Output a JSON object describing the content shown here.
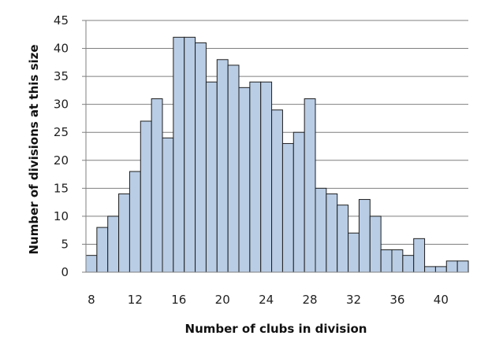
{
  "chart_data": {
    "type": "bar",
    "title": "",
    "xlabel": "Number of clubs in division",
    "ylabel": "Number of divisions at this size",
    "categories": [
      8,
      9,
      10,
      11,
      12,
      13,
      14,
      15,
      16,
      17,
      18,
      19,
      20,
      21,
      22,
      23,
      24,
      25,
      26,
      27,
      28,
      29,
      30,
      31,
      32,
      33,
      34,
      35,
      36,
      37,
      38,
      39,
      40,
      41,
      42
    ],
    "values": [
      3,
      8,
      10,
      14,
      18,
      27,
      31,
      24,
      42,
      42,
      41,
      34,
      38,
      37,
      33,
      34,
      34,
      29,
      23,
      25,
      31,
      15,
      14,
      12,
      7,
      13,
      10,
      4,
      4,
      3,
      6,
      1,
      1,
      2,
      2
    ],
    "x_tick_labels": [
      "8",
      "12",
      "16",
      "20",
      "24",
      "28",
      "32",
      "36",
      "40"
    ],
    "y_tick_labels": [
      "0",
      "5",
      "10",
      "15",
      "20",
      "25",
      "30",
      "35",
      "40",
      "45"
    ],
    "ylim": [
      0,
      45
    ],
    "grid": true,
    "legend": "none",
    "bar_color": "#b9cde5",
    "bar_edge_color": "#1f1f1f",
    "grid_color": "#7f7f7f"
  }
}
